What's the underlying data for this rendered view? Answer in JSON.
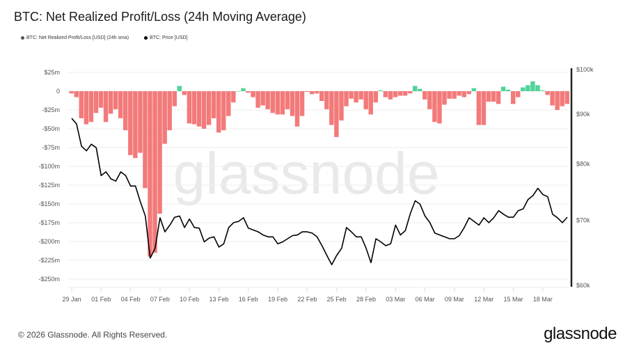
{
  "title": "BTC: Net Realized Profit/Loss (24h Moving Average)",
  "legend": [
    {
      "label": "BTC: Net Realized Profit/Loss [USD] (24h sma)",
      "color": "#555555"
    },
    {
      "label": "BTC: Price [USD]",
      "color": "#000000"
    }
  ],
  "watermark": "glassnode",
  "footer": {
    "copyright": "© 2026 Glassnode. All Rights Reserved.",
    "logo": "glassnode"
  },
  "chart_data": {
    "type": "bar+line",
    "title": "BTC: Net Realized Profit/Loss (24h Moving Average)",
    "colors": {
      "positive": "#3ecf8e",
      "negative": "#f26b6b",
      "price": "#000000",
      "axis": "#222222",
      "grid": "#eeeeee"
    },
    "left_axis": {
      "unit": "USD millions",
      "ylim": [
        -260,
        30
      ],
      "ticks": [
        25,
        0,
        -25,
        -50,
        -75,
        -100,
        -125,
        -150,
        -175,
        -200,
        -225,
        -250
      ],
      "tick_labels": [
        "$25m",
        "0",
        "-$25m",
        "-$50m",
        "-$75m",
        "-$100m",
        "-$125m",
        "-$150m",
        "-$175m",
        "-$200m",
        "-$225m",
        "-$250m"
      ]
    },
    "right_axis": {
      "unit": "USD thousands",
      "scale": "log",
      "ylim": [
        60,
        100
      ],
      "ticks": [
        100,
        90,
        80,
        70,
        60
      ],
      "tick_labels": [
        "$100k",
        "$90k",
        "$80k",
        "$70k",
        "$60k"
      ]
    },
    "x_axis": {
      "ticks": [
        "2026-01-29",
        "2026-02-01",
        "2026-02-04",
        "2026-02-07",
        "2026-02-10",
        "2026-02-13",
        "2026-02-16",
        "2026-02-19",
        "2026-02-22",
        "2026-02-25",
        "2026-02-28",
        "2026-03-03",
        "2026-03-06",
        "2026-03-09",
        "2026-03-12",
        "2026-03-15",
        "2026-03-18"
      ],
      "tick_labels": [
        "29 Jan",
        "01 Feb",
        "04 Feb",
        "07 Feb",
        "10 Feb",
        "13 Feb",
        "16 Feb",
        "19 Feb",
        "22 Feb",
        "25 Feb",
        "28 Feb",
        "03 Mar",
        "06 Mar",
        "09 Mar",
        "12 Mar",
        "15 Mar",
        "18 Mar"
      ]
    },
    "grid": true,
    "legend_position": "top-left",
    "x_start": "2026-01-29 00:00",
    "x_step_hours": 12,
    "series": [
      {
        "name": "BTC: Net Realized Profit/Loss [USD] (24h sma)",
        "axis": "left",
        "values": [
          -3,
          -8,
          -36,
          -44,
          -41,
          -29,
          -22,
          -41,
          -30,
          -24,
          -36,
          -52,
          -85,
          -89,
          -82,
          -129,
          -220,
          -215,
          -163,
          -70,
          -52,
          -20,
          7,
          -5,
          -43,
          -44,
          -47,
          -50,
          -45,
          -36,
          -55,
          -52,
          -33,
          -15,
          0,
          4,
          -2,
          -8,
          -22,
          -19,
          -24,
          -29,
          -31,
          -31,
          -24,
          -33,
          -47,
          -33,
          -1,
          -4,
          -3,
          -13,
          -24,
          -45,
          -61,
          -39,
          -20,
          -10,
          -15,
          -11,
          -24,
          -31,
          -15,
          1,
          -8,
          -11,
          -8,
          -6,
          -6,
          -3,
          7,
          3,
          -11,
          -24,
          -41,
          -43,
          -18,
          -10,
          -10,
          -6,
          -8,
          -4,
          4,
          -45,
          -45,
          -14,
          -14,
          -17,
          6,
          2,
          -17,
          -8,
          5,
          8,
          13,
          8,
          1,
          -5,
          -19,
          -25,
          -20,
          -17
        ]
      },
      {
        "name": "BTC: Price [USD]",
        "axis": "right",
        "values": [
          89.1,
          87.9,
          83.4,
          82.5,
          83.8,
          83.1,
          77.8,
          78.5,
          77.2,
          76.8,
          78.5,
          77.8,
          75.9,
          75.9,
          73.1,
          70.7,
          64.0,
          65.5,
          70.4,
          68.1,
          69.2,
          70.5,
          70.7,
          68.8,
          70.2,
          68.8,
          68.7,
          66.5,
          67.1,
          67.3,
          65.7,
          66.2,
          68.8,
          69.6,
          69.8,
          70.4,
          68.7,
          68.4,
          68.1,
          67.6,
          67.3,
          67.3,
          66.2,
          66.5,
          67.0,
          67.5,
          67.6,
          68.1,
          68.1,
          67.9,
          67.3,
          65.9,
          64.4,
          63.0,
          64.4,
          65.5,
          68.8,
          68.1,
          67.3,
          67.3,
          65.5,
          63.3,
          67.0,
          66.5,
          65.9,
          66.2,
          69.2,
          67.6,
          68.3,
          71.1,
          73.3,
          72.7,
          70.7,
          69.6,
          67.9,
          67.6,
          67.3,
          67.0,
          67.0,
          67.5,
          68.8,
          70.4,
          69.8,
          69.2,
          70.4,
          69.6,
          70.4,
          71.6,
          71.0,
          70.5,
          70.5,
          71.6,
          71.9,
          73.5,
          74.2,
          75.5,
          74.4,
          74.0,
          71.0,
          70.4,
          69.6,
          70.5
        ]
      }
    ]
  }
}
